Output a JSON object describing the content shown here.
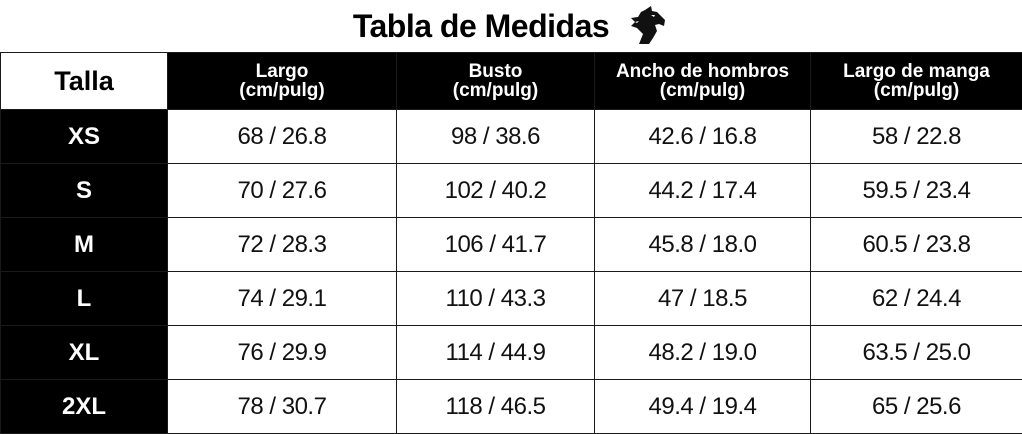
{
  "title": "Tabla de Medidas",
  "logo_icon": "horse-head-icon",
  "table": {
    "corner_label": "Talla",
    "columns": [
      {
        "name": "Largo",
        "unit": "(cm/pulg)"
      },
      {
        "name": "Busto",
        "unit": "(cm/pulg)"
      },
      {
        "name": "Ancho de hombros",
        "unit": "(cm/pulg)"
      },
      {
        "name": "Largo de manga",
        "unit": "(cm/pulg)"
      }
    ],
    "rows": [
      {
        "size": "XS",
        "values": [
          "68 / 26.8",
          "98 / 38.6",
          "42.6 / 16.8",
          "58 / 22.8"
        ]
      },
      {
        "size": "S",
        "values": [
          "70 / 27.6",
          "102 / 40.2",
          "44.2 / 17.4",
          "59.5 / 23.4"
        ]
      },
      {
        "size": "M",
        "values": [
          "72 / 28.3",
          "106 / 41.7",
          "45.8 / 18.0",
          "60.5 / 23.8"
        ]
      },
      {
        "size": "L",
        "values": [
          "74 / 29.1",
          "110 / 43.3",
          "47 / 18.5",
          "62 / 24.4"
        ]
      },
      {
        "size": "XL",
        "values": [
          "76 / 29.9",
          "114 / 44.9",
          "48.2 / 19.0",
          "63.5 / 25.0"
        ]
      },
      {
        "size": "2XL",
        "values": [
          "78 / 30.7",
          "118 / 46.5",
          "49.4 / 19.4",
          "65 / 25.6"
        ]
      }
    ]
  },
  "colors": {
    "header_bg": "#000000",
    "header_text": "#ffffff",
    "cell_bg": "#ffffff",
    "cell_text": "#111111"
  }
}
